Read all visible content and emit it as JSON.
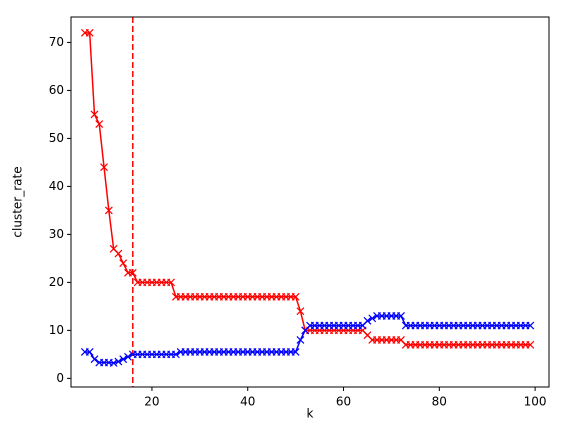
{
  "chart_data": {
    "type": "line",
    "xlabel": "k",
    "ylabel": "cluster_rate",
    "x": [
      6,
      7,
      8,
      9,
      10,
      11,
      12,
      13,
      14,
      15,
      16,
      17,
      18,
      19,
      20,
      21,
      22,
      23,
      24,
      25,
      26,
      27,
      28,
      29,
      30,
      31,
      32,
      33,
      34,
      35,
      36,
      37,
      38,
      39,
      40,
      41,
      42,
      43,
      44,
      45,
      46,
      47,
      48,
      49,
      50,
      51,
      52,
      53,
      54,
      55,
      56,
      57,
      58,
      59,
      60,
      61,
      62,
      63,
      64,
      65,
      66,
      67,
      68,
      69,
      70,
      71,
      72,
      73,
      74,
      75,
      76,
      77,
      78,
      79,
      80,
      81,
      82,
      83,
      84,
      85,
      86,
      87,
      88,
      89,
      90,
      91,
      92,
      93,
      94,
      95,
      96,
      97,
      98,
      99
    ],
    "series": [
      {
        "color": "#ff0000",
        "marker": "x",
        "values": [
          72,
          72,
          55,
          53,
          44,
          35,
          27,
          26,
          24,
          22,
          22,
          20,
          20,
          20,
          20,
          20,
          20,
          20,
          20,
          17,
          17,
          17,
          17,
          17,
          17,
          17,
          17,
          17,
          17,
          17,
          17,
          17,
          17,
          17,
          17,
          17,
          17,
          17,
          17,
          17,
          17,
          17,
          17,
          17,
          17,
          14,
          10,
          10,
          10,
          10,
          10,
          10,
          10,
          10,
          10,
          10,
          10,
          10,
          10,
          9,
          8,
          8,
          8,
          8,
          8,
          8,
          8,
          7,
          7,
          7,
          7,
          7,
          7,
          7,
          7,
          7,
          7,
          7,
          7,
          7,
          7,
          7,
          7,
          7,
          7,
          7,
          7,
          7,
          7,
          7,
          7,
          7,
          7,
          7
        ]
      },
      {
        "color": "#0000ff",
        "marker": "x",
        "values": [
          5.5,
          5.5,
          4,
          3.3,
          3.3,
          3.3,
          3.2,
          3.5,
          4,
          4.5,
          5,
          5,
          5,
          5,
          5,
          5,
          5,
          5,
          5,
          5,
          5.5,
          5.5,
          5.5,
          5.5,
          5.5,
          5.5,
          5.5,
          5.5,
          5.5,
          5.5,
          5.5,
          5.5,
          5.5,
          5.5,
          5.5,
          5.5,
          5.5,
          5.5,
          5.5,
          5.5,
          5.5,
          5.5,
          5.5,
          5.5,
          5.5,
          8,
          10,
          11,
          11,
          11,
          11,
          11,
          11,
          11,
          11,
          11,
          11,
          11,
          11,
          12,
          12.5,
          13,
          13,
          13,
          13,
          13,
          13,
          11,
          11,
          11,
          11,
          11,
          11,
          11,
          11,
          11,
          11,
          11,
          11,
          11,
          11,
          11,
          11,
          11,
          11,
          11,
          11,
          11,
          11,
          11,
          11,
          11,
          11,
          11
        ]
      }
    ],
    "vline": {
      "x": 16,
      "color": "#ff0000",
      "style": "dashed"
    },
    "xlim": [
      3.1,
      102.9
    ],
    "xticks": [
      20,
      40,
      60,
      80,
      100
    ],
    "ylim": [
      -1.8,
      75.3
    ],
    "yticks": [
      0,
      10,
      20,
      30,
      40,
      50,
      60,
      70
    ],
    "grid": false
  }
}
